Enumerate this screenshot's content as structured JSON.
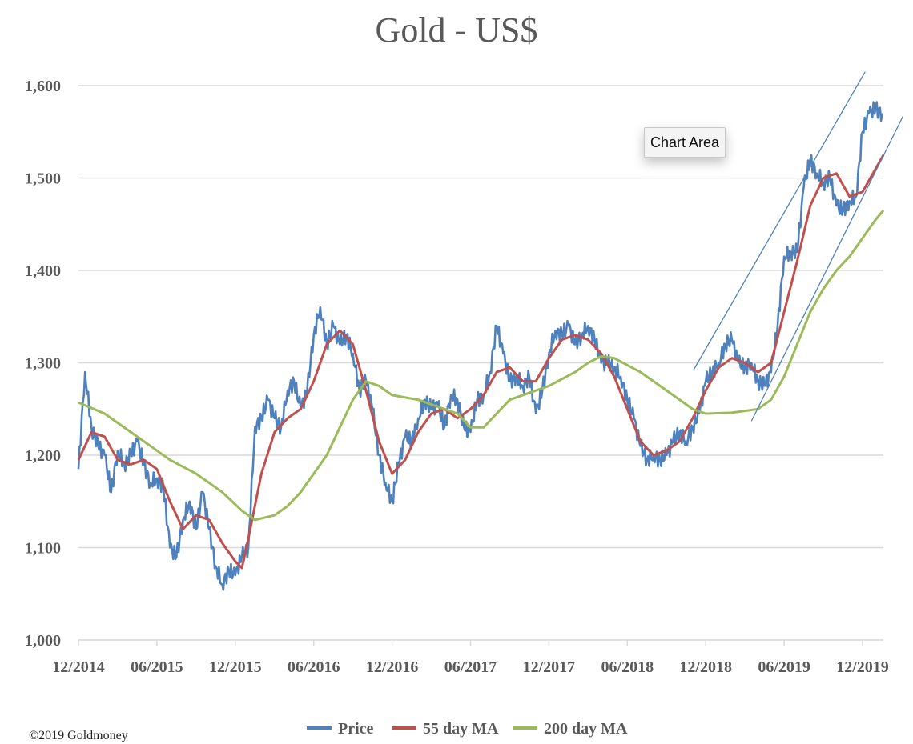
{
  "chart_data": {
    "type": "line",
    "title": "Gold - US$",
    "xlabel": "",
    "ylabel": "",
    "x_unit": "months since 12/2014",
    "xlim": [
      0,
      61.6
    ],
    "ylim": [
      1000,
      1600
    ],
    "yticks": [
      1000,
      1100,
      1200,
      1300,
      1400,
      1500,
      1600
    ],
    "ytick_labels": [
      "1,000",
      "1,100",
      "1,200",
      "1,300",
      "1,400",
      "1,500",
      "1,600"
    ],
    "xticks": [
      0,
      6,
      12,
      18,
      24,
      30,
      36,
      42,
      48,
      54,
      60
    ],
    "xtick_labels": [
      "12/2014",
      "06/2015",
      "12/2015",
      "06/2016",
      "12/2016",
      "06/2017",
      "12/2017",
      "06/2018",
      "12/2018",
      "06/2019",
      "12/2019"
    ],
    "grid": true,
    "legend_position": "bottom",
    "series": [
      {
        "name": "Price",
        "color": "#4f81bd",
        "x": [
          0,
          0.5,
          1,
          1.5,
          2,
          2.5,
          3,
          3.5,
          4,
          4.5,
          5,
          5.5,
          6,
          6.5,
          7,
          7.5,
          8,
          8.5,
          9,
          9.5,
          10,
          10.5,
          11,
          11.5,
          12,
          12.5,
          13,
          13.5,
          14,
          14.5,
          15,
          15.5,
          16,
          16.5,
          17,
          17.5,
          18,
          18.5,
          19,
          19.5,
          20,
          20.5,
          21,
          21.5,
          22,
          22.5,
          23,
          23.5,
          24,
          24.5,
          25,
          25.5,
          26,
          26.5,
          27,
          27.5,
          28,
          28.5,
          29,
          29.5,
          30,
          30.5,
          31,
          31.5,
          32,
          32.5,
          33,
          33.5,
          34,
          34.5,
          35,
          35.5,
          36,
          36.5,
          37,
          37.5,
          38,
          38.5,
          39,
          39.5,
          40,
          40.5,
          41,
          41.5,
          42,
          42.5,
          43,
          43.5,
          44,
          44.5,
          45,
          45.5,
          46,
          46.5,
          47,
          47.5,
          48,
          48.5,
          49,
          49.5,
          50,
          50.5,
          51,
          51.5,
          52,
          52.5,
          53,
          53.5,
          54,
          54.5,
          55,
          55.5,
          56,
          56.5,
          57,
          57.5,
          58,
          58.5,
          59,
          59.5,
          60,
          60.5,
          61,
          61.5
        ],
        "values": [
          1185,
          1290,
          1230,
          1210,
          1200,
          1160,
          1205,
          1190,
          1200,
          1215,
          1190,
          1170,
          1175,
          1165,
          1100,
          1090,
          1130,
          1150,
          1120,
          1160,
          1120,
          1080,
          1060,
          1075,
          1070,
          1090,
          1100,
          1230,
          1240,
          1260,
          1240,
          1230,
          1270,
          1280,
          1250,
          1270,
          1330,
          1360,
          1320,
          1340,
          1320,
          1330,
          1310,
          1270,
          1280,
          1250,
          1200,
          1170,
          1150,
          1190,
          1220,
          1215,
          1240,
          1260,
          1250,
          1255,
          1230,
          1265,
          1260,
          1230,
          1225,
          1260,
          1265,
          1290,
          1340,
          1310,
          1280,
          1285,
          1275,
          1285,
          1245,
          1270,
          1310,
          1335,
          1330,
          1340,
          1320,
          1330,
          1340,
          1325,
          1300,
          1300,
          1295,
          1285,
          1260,
          1240,
          1210,
          1195,
          1200,
          1195,
          1200,
          1215,
          1225,
          1215,
          1230,
          1245,
          1280,
          1290,
          1300,
          1320,
          1325,
          1300,
          1295,
          1300,
          1280,
          1275,
          1290,
          1340,
          1415,
          1420,
          1420,
          1490,
          1520,
          1505,
          1495,
          1500,
          1470,
          1465,
          1475,
          1480,
          1550,
          1570,
          1575,
          1570
        ]
      },
      {
        "name": "55 day MA",
        "color": "#c0504d",
        "x": [
          0,
          1,
          2,
          3,
          4,
          5,
          6,
          7,
          8,
          9,
          10,
          11,
          12,
          12.5,
          13,
          14,
          15,
          16,
          17,
          18,
          19,
          20,
          21,
          22,
          23,
          24,
          25,
          26,
          27,
          28,
          29,
          30,
          31,
          32,
          33,
          34,
          35,
          36,
          37,
          38,
          39,
          40,
          41,
          42,
          43,
          44,
          45,
          46,
          47,
          48,
          49,
          50,
          51,
          52,
          53,
          54,
          55,
          56,
          57,
          58,
          59,
          60,
          61,
          61.6
        ],
        "values": [
          1195,
          1225,
          1220,
          1195,
          1190,
          1195,
          1185,
          1150,
          1120,
          1135,
          1130,
          1105,
          1085,
          1078,
          1110,
          1180,
          1225,
          1240,
          1250,
          1280,
          1320,
          1335,
          1320,
          1270,
          1215,
          1180,
          1195,
          1225,
          1245,
          1250,
          1240,
          1250,
          1265,
          1290,
          1295,
          1280,
          1280,
          1305,
          1325,
          1330,
          1325,
          1310,
          1285,
          1250,
          1215,
          1200,
          1205,
          1215,
          1240,
          1270,
          1295,
          1305,
          1300,
          1290,
          1300,
          1355,
          1410,
          1470,
          1500,
          1505,
          1480,
          1485,
          1510,
          1525
        ]
      },
      {
        "name": "200 day MA",
        "color": "#9bbb59",
        "x": [
          0,
          2,
          4,
          6,
          7,
          9,
          11,
          12.5,
          13.5,
          15,
          16,
          17,
          18,
          19,
          20,
          21,
          22,
          23,
          24,
          26,
          28,
          29,
          30,
          31,
          32,
          33,
          34,
          36,
          38,
          39,
          40,
          41,
          43,
          45,
          47,
          48,
          50,
          52,
          53,
          54,
          55,
          56,
          57,
          58,
          59,
          60,
          61,
          61.6
        ],
        "values": [
          1257,
          1245,
          1225,
          1205,
          1195,
          1180,
          1160,
          1140,
          1130,
          1135,
          1145,
          1160,
          1180,
          1200,
          1230,
          1260,
          1280,
          1275,
          1265,
          1260,
          1250,
          1245,
          1230,
          1230,
          1245,
          1260,
          1265,
          1275,
          1290,
          1300,
          1307,
          1305,
          1290,
          1270,
          1250,
          1245,
          1246,
          1250,
          1260,
          1285,
          1320,
          1355,
          1380,
          1400,
          1415,
          1435,
          1455,
          1465
        ]
      }
    ],
    "annotations": {
      "trend_lines": [
        {
          "from": [
            47.06,
            1292
          ],
          "to": [
            60.2,
            1615
          ]
        },
        {
          "from": [
            51.5,
            1237
          ],
          "to": [
            63.1,
            1567
          ]
        }
      ],
      "tooltip": "Chart Area",
      "copyright": "©2019 Goldmoney"
    }
  }
}
